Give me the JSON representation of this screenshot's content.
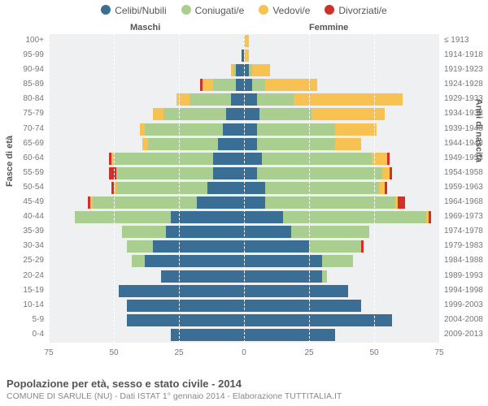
{
  "legend": [
    {
      "label": "Celibi/Nubili",
      "color": "#3b6e94"
    },
    {
      "label": "Coniugati/e",
      "color": "#a9ce8f"
    },
    {
      "label": "Vedovi/e",
      "color": "#f7c252"
    },
    {
      "label": "Divorziati/e",
      "color": "#d02f2a"
    }
  ],
  "headers": {
    "left": "Maschi",
    "right": "Femmine"
  },
  "axis_titles": {
    "left": "Fasce di età",
    "right": "Anni di nascita"
  },
  "title": "Popolazione per età, sesso e stato civile - 2014",
  "subtitle": "COMUNE DI SARULE (NU) - Dati ISTAT 1° gennaio 2014 - Elaborazione TUTTITALIA.IT",
  "colors": {
    "celibi": "#3b6e94",
    "coniugati": "#a9ce8f",
    "vedovi": "#f7c252",
    "divorziati": "#d02f2a",
    "plot_bg": "#eef0f1",
    "grid": "#ffffff",
    "text": "#777",
    "title": "#555"
  },
  "x": {
    "max": 75,
    "ticks": [
      75,
      50,
      25,
      0,
      25,
      50,
      75
    ]
  },
  "rows": [
    {
      "age": "100+",
      "birth": "≤ 1913",
      "m": {
        "celibi": 0,
        "coniugati": 0,
        "vedovi": 0,
        "divorziati": 0
      },
      "f": {
        "celibi": 0,
        "coniugati": 0,
        "vedovi": 2,
        "divorziati": 0
      }
    },
    {
      "age": "95-99",
      "birth": "1914-1918",
      "m": {
        "celibi": 1,
        "coniugati": 0,
        "vedovi": 0,
        "divorziati": 0
      },
      "f": {
        "celibi": 0,
        "coniugati": 0,
        "vedovi": 2,
        "divorziati": 0
      }
    },
    {
      "age": "90-94",
      "birth": "1919-1923",
      "m": {
        "celibi": 3,
        "coniugati": 1,
        "vedovi": 1,
        "divorziati": 0
      },
      "f": {
        "celibi": 2,
        "coniugati": 1,
        "vedovi": 7,
        "divorziati": 0
      }
    },
    {
      "age": "85-89",
      "birth": "1924-1928",
      "m": {
        "celibi": 3,
        "coniugati": 9,
        "vedovi": 4,
        "divorziati": 1
      },
      "f": {
        "celibi": 3,
        "coniugati": 5,
        "vedovi": 20,
        "divorziati": 0
      }
    },
    {
      "age": "80-84",
      "birth": "1929-1933",
      "m": {
        "celibi": 5,
        "coniugati": 16,
        "vedovi": 5,
        "divorziati": 0
      },
      "f": {
        "celibi": 5,
        "coniugati": 14,
        "vedovi": 42,
        "divorziati": 0
      }
    },
    {
      "age": "75-79",
      "birth": "1934-1938",
      "m": {
        "celibi": 7,
        "coniugati": 24,
        "vedovi": 4,
        "divorziati": 0
      },
      "f": {
        "celibi": 6,
        "coniugati": 20,
        "vedovi": 28,
        "divorziati": 0
      }
    },
    {
      "age": "70-74",
      "birth": "1939-1943",
      "m": {
        "celibi": 8,
        "coniugati": 30,
        "vedovi": 2,
        "divorziati": 0
      },
      "f": {
        "celibi": 5,
        "coniugati": 30,
        "vedovi": 16,
        "divorziati": 0
      }
    },
    {
      "age": "65-69",
      "birth": "1944-1948",
      "m": {
        "celibi": 10,
        "coniugati": 27,
        "vedovi": 2,
        "divorziati": 0
      },
      "f": {
        "celibi": 5,
        "coniugati": 30,
        "vedovi": 10,
        "divorziati": 0
      }
    },
    {
      "age": "60-64",
      "birth": "1949-1953",
      "m": {
        "celibi": 12,
        "coniugati": 38,
        "vedovi": 1,
        "divorziati": 1
      },
      "f": {
        "celibi": 7,
        "coniugati": 42,
        "vedovi": 6,
        "divorziati": 1
      }
    },
    {
      "age": "55-59",
      "birth": "1954-1958",
      "m": {
        "celibi": 12,
        "coniugati": 37,
        "vedovi": 0,
        "divorziati": 3
      },
      "f": {
        "celibi": 5,
        "coniugati": 48,
        "vedovi": 3,
        "divorziati": 1
      }
    },
    {
      "age": "50-54",
      "birth": "1959-1963",
      "m": {
        "celibi": 14,
        "coniugati": 35,
        "vedovi": 1,
        "divorziati": 1
      },
      "f": {
        "celibi": 8,
        "coniugati": 44,
        "vedovi": 2,
        "divorziati": 1
      }
    },
    {
      "age": "45-49",
      "birth": "1964-1968",
      "m": {
        "celibi": 18,
        "coniugati": 40,
        "vedovi": 1,
        "divorziati": 1
      },
      "f": {
        "celibi": 8,
        "coniugati": 50,
        "vedovi": 1,
        "divorziati": 3
      }
    },
    {
      "age": "40-44",
      "birth": "1969-1973",
      "m": {
        "celibi": 28,
        "coniugati": 37,
        "vedovi": 0,
        "divorziati": 0
      },
      "f": {
        "celibi": 15,
        "coniugati": 55,
        "vedovi": 1,
        "divorziati": 1
      }
    },
    {
      "age": "35-39",
      "birth": "1974-1978",
      "m": {
        "celibi": 30,
        "coniugati": 17,
        "vedovi": 0,
        "divorziati": 0
      },
      "f": {
        "celibi": 18,
        "coniugati": 30,
        "vedovi": 0,
        "divorziati": 0
      }
    },
    {
      "age": "30-34",
      "birth": "1979-1983",
      "m": {
        "celibi": 35,
        "coniugati": 10,
        "vedovi": 0,
        "divorziati": 0
      },
      "f": {
        "celibi": 25,
        "coniugati": 20,
        "vedovi": 0,
        "divorziati": 1
      }
    },
    {
      "age": "25-29",
      "birth": "1984-1988",
      "m": {
        "celibi": 38,
        "coniugati": 5,
        "vedovi": 0,
        "divorziati": 0
      },
      "f": {
        "celibi": 30,
        "coniugati": 12,
        "vedovi": 0,
        "divorziati": 0
      }
    },
    {
      "age": "20-24",
      "birth": "1989-1993",
      "m": {
        "celibi": 32,
        "coniugati": 0,
        "vedovi": 0,
        "divorziati": 0
      },
      "f": {
        "celibi": 30,
        "coniugati": 2,
        "vedovi": 0,
        "divorziati": 0
      }
    },
    {
      "age": "15-19",
      "birth": "1994-1998",
      "m": {
        "celibi": 48,
        "coniugati": 0,
        "vedovi": 0,
        "divorziati": 0
      },
      "f": {
        "celibi": 40,
        "coniugati": 0,
        "vedovi": 0,
        "divorziati": 0
      }
    },
    {
      "age": "10-14",
      "birth": "1999-2003",
      "m": {
        "celibi": 45,
        "coniugati": 0,
        "vedovi": 0,
        "divorziati": 0
      },
      "f": {
        "celibi": 45,
        "coniugati": 0,
        "vedovi": 0,
        "divorziati": 0
      }
    },
    {
      "age": "5-9",
      "birth": "2004-2008",
      "m": {
        "celibi": 45,
        "coniugati": 0,
        "vedovi": 0,
        "divorziati": 0
      },
      "f": {
        "celibi": 57,
        "coniugati": 0,
        "vedovi": 0,
        "divorziati": 0
      }
    },
    {
      "age": "0-4",
      "birth": "2009-2013",
      "m": {
        "celibi": 28,
        "coniugati": 0,
        "vedovi": 0,
        "divorziati": 0
      },
      "f": {
        "celibi": 35,
        "coniugati": 0,
        "vedovi": 0,
        "divorziati": 0
      }
    }
  ]
}
